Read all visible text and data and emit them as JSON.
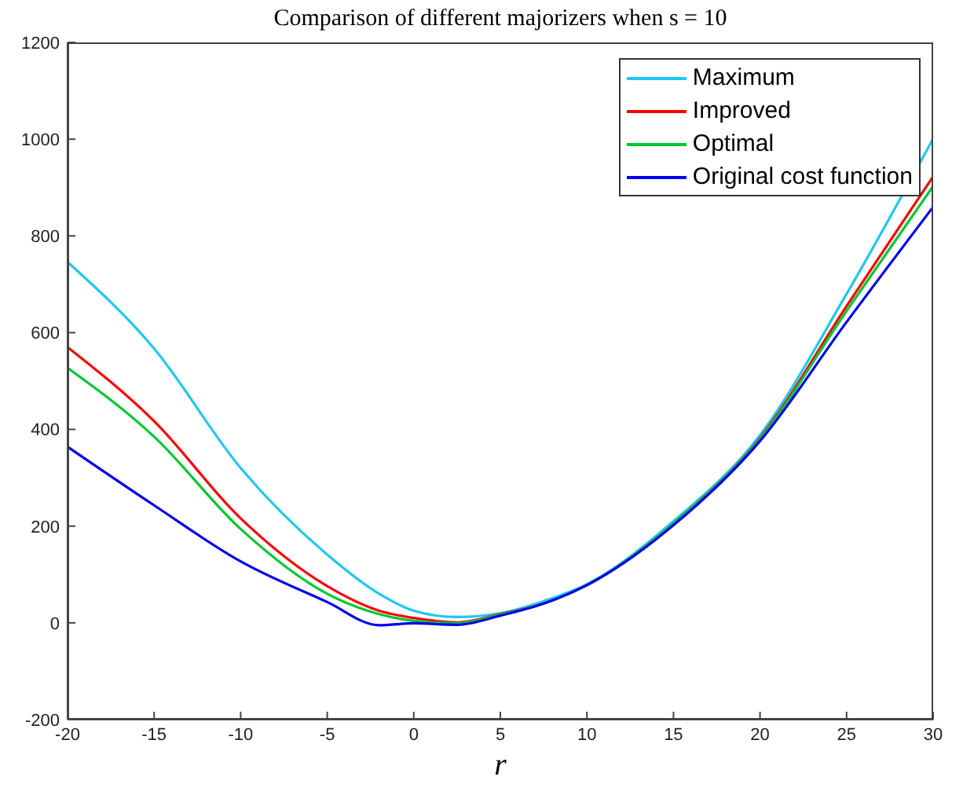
{
  "chart_data": {
    "type": "line",
    "title": "Comparison of different majorizers when s = 10",
    "xlabel": "r",
    "x": [
      -20,
      -15,
      -10,
      -5,
      -2,
      0,
      2.5,
      5,
      7.5,
      10,
      15,
      20,
      25,
      30
    ],
    "series": [
      {
        "name": "Maximum",
        "color": "#1ec8f0",
        "values": [
          746,
          567,
          320,
          141,
          60,
          25,
          12,
          20,
          45,
          80,
          210,
          388,
          680,
          1001
        ]
      },
      {
        "name": "Improved",
        "color": "#ff0000",
        "values": [
          570,
          417,
          216,
          76,
          25,
          10,
          1,
          18,
          40,
          78,
          205,
          382,
          655,
          923
        ]
      },
      {
        "name": "Optimal",
        "color": "#00c832",
        "values": [
          527,
          385,
          194,
          60,
          18,
          4,
          -1,
          17,
          40,
          78,
          205,
          380,
          645,
          903
        ]
      },
      {
        "name": "Original cost function",
        "color": "#0000f0",
        "values": [
          364,
          243,
          127,
          43,
          -5,
          -1,
          -4,
          15,
          40,
          78,
          202,
          376,
          622,
          860
        ]
      }
    ],
    "xlim": [
      -20,
      30
    ],
    "xticks": [
      -20,
      -15,
      -10,
      -5,
      0,
      5,
      10,
      15,
      20,
      25,
      30
    ],
    "ylim": [
      -200,
      1200
    ],
    "yticks": [
      -200,
      0,
      200,
      400,
      600,
      800,
      1000,
      1200
    ],
    "legend": "top right",
    "marker": "none",
    "line_style": "solid"
  }
}
